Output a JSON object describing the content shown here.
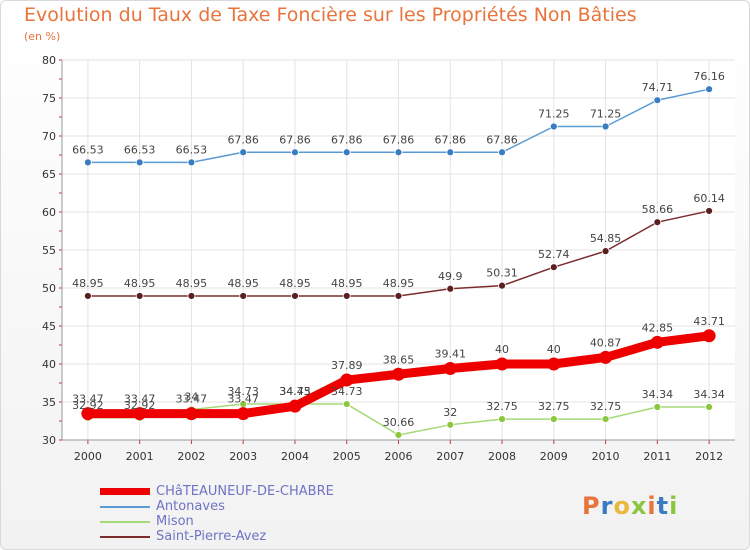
{
  "title": "Evolution du Taux de Taxe Foncière sur les Propriétés Non Bâties",
  "subtitle": "(en %)",
  "logo": {
    "letters": [
      "P",
      "r",
      "o",
      "x",
      "i",
      "t",
      "i"
    ],
    "colors": [
      "#e8743b",
      "#3a7cc1",
      "#e8b93b",
      "#8cc63f",
      "#e8743b",
      "#3a7cc1",
      "#8cc63f"
    ]
  },
  "chart_data": {
    "type": "line",
    "title": "Evolution du Taux de Taxe Foncière sur les Propriétés Non Bâties",
    "ylabel": "(en %)",
    "x": [
      "2000",
      "2001",
      "2002",
      "2003",
      "2004",
      "2005",
      "2006",
      "2007",
      "2008",
      "2009",
      "2010",
      "2011",
      "2012"
    ],
    "ylim": [
      30,
      80
    ],
    "yticks": [
      30,
      35,
      40,
      45,
      50,
      55,
      60,
      65,
      70,
      75,
      80
    ],
    "grid": true,
    "legend_position": "bottom-left",
    "series": [
      {
        "name": "Antonaves",
        "color": "#5b9bd5",
        "marker": "#3a7cc1",
        "values": [
          66.53,
          66.53,
          66.53,
          67.86,
          67.86,
          67.86,
          67.86,
          67.86,
          67.86,
          71.25,
          71.25,
          74.71,
          76.16
        ],
        "labels": [
          "66.53",
          "66.53",
          "66.53",
          "67.86",
          "67.86",
          "67.86",
          "67.86",
          "67.86",
          "67.86",
          "71.25",
          "71.25",
          "74.71",
          "76.16"
        ]
      },
      {
        "name": "Saint-Pierre-Avez",
        "color": "#7b2d2d",
        "marker": "#5a1f1f",
        "values": [
          48.95,
          48.95,
          48.95,
          48.95,
          48.95,
          48.95,
          48.95,
          49.9,
          50.31,
          52.74,
          54.85,
          58.66,
          60.14
        ],
        "labels": [
          "48.95",
          "48.95",
          "48.95",
          "48.95",
          "48.95",
          "48.95",
          "48.95",
          "49.9",
          "50.31",
          "52.74",
          "54.85",
          "58.66",
          "60.14"
        ]
      },
      {
        "name": "Mison",
        "color": "#a3d977",
        "marker": "#8cc63f",
        "values": [
          32.92,
          32.92,
          34.0,
          34.73,
          34.73,
          34.73,
          30.66,
          32.0,
          32.75,
          32.75,
          32.75,
          34.34,
          34.34
        ],
        "labels": [
          "32.92",
          "32.92",
          "34",
          "34.73",
          "34.73",
          "34.73",
          "30.66",
          "32",
          "32.75",
          "32.75",
          "32.75",
          "34.34",
          "34.34"
        ]
      },
      {
        "name": "CHâTEAUNEUF-DE-CHABRE",
        "color": "#ee0000",
        "marker": "#ee0000",
        "thick": true,
        "values": [
          33.47,
          33.47,
          33.47,
          33.47,
          34.45,
          37.89,
          38.65,
          39.41,
          40.0,
          40.0,
          40.87,
          42.85,
          43.71
        ],
        "labels": [
          "33.47",
          "33.47",
          "33.47",
          "33.47",
          "34.45",
          "37.89",
          "38.65",
          "39.41",
          "40",
          "40",
          "40.87",
          "42.85",
          "43.71"
        ]
      }
    ],
    "legend": [
      "CHâTEAUNEUF-DE-CHABRE",
      "Antonaves",
      "Mison",
      "Saint-Pierre-Avez"
    ]
  }
}
